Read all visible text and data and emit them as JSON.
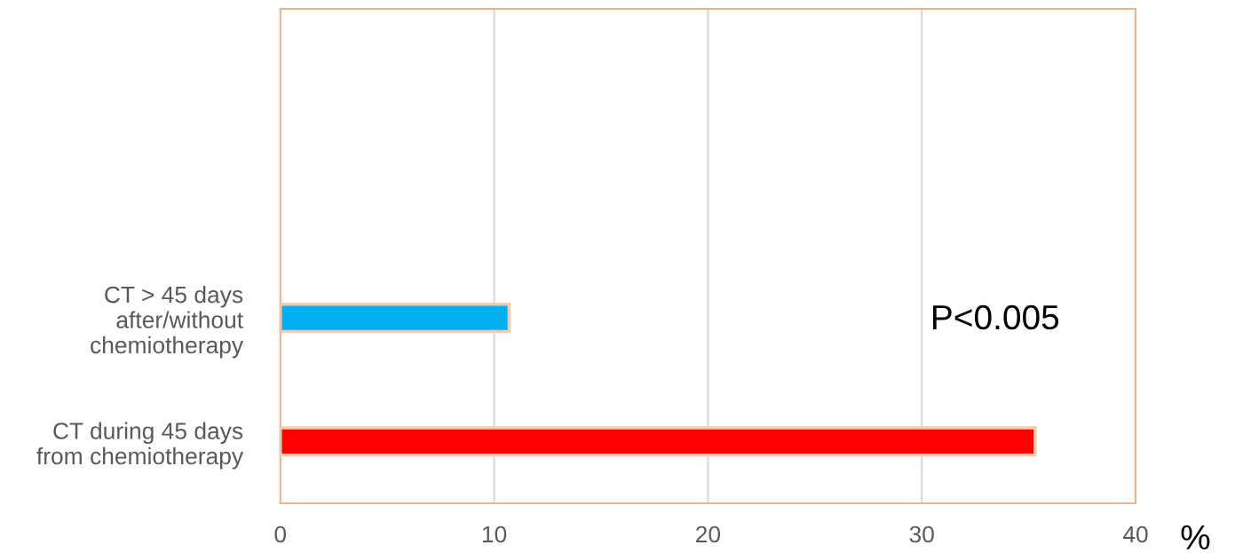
{
  "chart_data": {
    "type": "bar",
    "orientation": "horizontal",
    "categories": [
      null,
      null,
      "CT > 45 days\nafter/without\nchemiotherapy",
      "CT during 45 days\nfrom chemiotherapy"
    ],
    "values": [
      null,
      null,
      10.7,
      35.3
    ],
    "colors": [
      "#00b0f0",
      "#00b0f0",
      "#00b0f0",
      "#ff0000"
    ],
    "xlim": [
      0,
      40
    ],
    "xticks": [
      0,
      10,
      20,
      30,
      40
    ],
    "xlabel": "%",
    "grid": "x",
    "annotations": [
      "P<0.005"
    ]
  }
}
